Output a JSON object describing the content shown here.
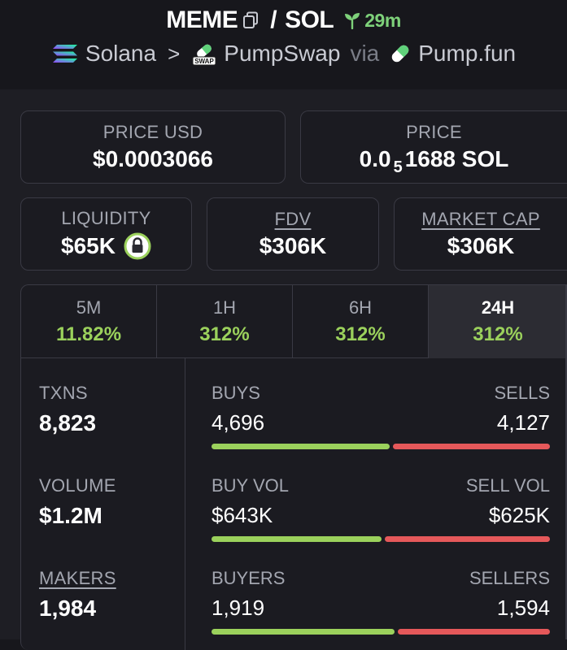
{
  "header": {
    "base_token": "MEME",
    "slash": "/",
    "quote_token": "SOL",
    "age": "29m",
    "chain": "Solana",
    "chevron": ">",
    "dex": "PumpSwap",
    "via": "via",
    "launchpad": "Pump.fun"
  },
  "price_usd": {
    "label": "PRICE USD",
    "value": "$0.0003066"
  },
  "price_native": {
    "label": "PRICE",
    "prefix": "0.0",
    "zeros": "5",
    "digits": "1688",
    "unit": "SOL"
  },
  "liquidity": {
    "label": "LIQUIDITY",
    "value": "$65K"
  },
  "fdv": {
    "label": "FDV",
    "value": "$306K"
  },
  "market_cap": {
    "label": "MARKET CAP",
    "value": "$306K"
  },
  "tabs": [
    {
      "label": "5M",
      "change": "11.82%"
    },
    {
      "label": "1H",
      "change": "312%"
    },
    {
      "label": "6H",
      "change": "312%"
    },
    {
      "label": "24H",
      "change": "312%"
    }
  ],
  "active_tab": "24H",
  "stats": {
    "txns": {
      "label": "TXNS",
      "value": "8,823"
    },
    "volume": {
      "label": "VOLUME",
      "value": "$1.2M"
    },
    "makers": {
      "label": "MAKERS",
      "value": "1,984"
    },
    "buys": {
      "label": "BUYS",
      "value": "4,696"
    },
    "sells": {
      "label": "SELLS",
      "value": "4,127"
    },
    "buy_vol": {
      "label": "BUY VOL",
      "value": "$643K"
    },
    "sell_vol": {
      "label": "SELL VOL",
      "value": "$625K"
    },
    "buyers": {
      "label": "BUYERS",
      "value": "1,919"
    },
    "sellers": {
      "label": "SELLERS",
      "value": "1,594"
    }
  },
  "bars": {
    "txns_buy_fraction": 0.532,
    "volume_buy_fraction": 0.507,
    "makers_buy_fraction": 0.546
  },
  "colors": {
    "background": "#17171c",
    "panel": "#1e1e24",
    "positive": "#9bd15c",
    "negative": "#e5585a",
    "age_green": "#7ed17a",
    "border": "#3a3a44"
  }
}
